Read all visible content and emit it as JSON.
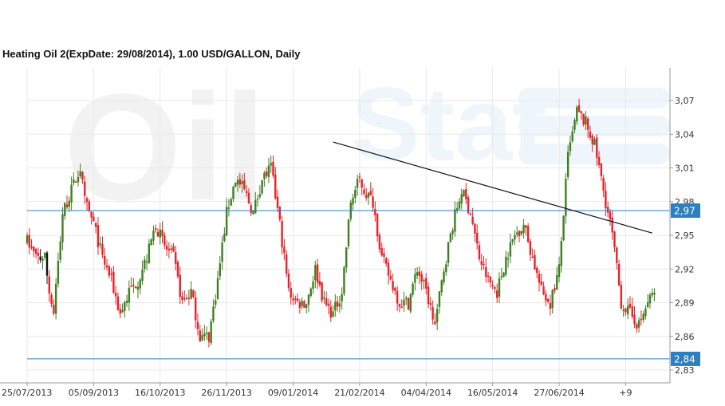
{
  "chart_data": {
    "type": "candlestick",
    "title": "Heating Oil 2(ExpDate: 29/08/2014), 1.00 USD/GALLON, Daily",
    "watermark": [
      "Oil",
      "Stat"
    ],
    "ylim": [
      2.82,
      3.09
    ],
    "y_ticks": [
      "2,83",
      "2,86",
      "2,89",
      "2,92",
      "2,95",
      "2,98",
      "3,01",
      "3,04",
      "3,07"
    ],
    "y_tick_values": [
      2.83,
      2.86,
      2.89,
      2.92,
      2.95,
      2.98,
      3.01,
      3.04,
      3.07
    ],
    "x_ticks": [
      "25/07/2013",
      "05/09/2013",
      "16/10/2013",
      "26/11/2013",
      "09/01/2014",
      "21/02/2014",
      "04/04/2014",
      "16/05/2014",
      "27/06/2014",
      "+9"
    ],
    "x_tick_index": [
      0,
      30,
      60,
      90,
      120,
      150,
      180,
      210,
      240,
      270
    ],
    "index_range": [
      0,
      290
    ],
    "levels": [
      {
        "label": "2,97",
        "value": 2.972
      },
      {
        "label": "2,84",
        "value": 2.84
      }
    ],
    "trendline": {
      "from": {
        "index": 138,
        "value": 3.033
      },
      "to": {
        "index": 282,
        "value": 2.952
      }
    },
    "colors": {
      "up": "#3f7f1f",
      "down": "#e8212a",
      "neutral": "#111111",
      "level": "#2e7fbf",
      "trend": "#111111",
      "grid": "#e8e8e8"
    },
    "anchors": [
      [
        0,
        2.945
      ],
      [
        4,
        2.93
      ],
      [
        8,
        2.93
      ],
      [
        10,
        2.9
      ],
      [
        12,
        2.88
      ],
      [
        16,
        2.97
      ],
      [
        20,
        2.99
      ],
      [
        24,
        3.01
      ],
      [
        26,
        2.98
      ],
      [
        30,
        2.96
      ],
      [
        34,
        2.93
      ],
      [
        38,
        2.91
      ],
      [
        42,
        2.88
      ],
      [
        46,
        2.9
      ],
      [
        50,
        2.91
      ],
      [
        54,
        2.93
      ],
      [
        58,
        2.96
      ],
      [
        62,
        2.94
      ],
      [
        66,
        2.93
      ],
      [
        70,
        2.89
      ],
      [
        74,
        2.9
      ],
      [
        78,
        2.86
      ],
      [
        82,
        2.86
      ],
      [
        86,
        2.91
      ],
      [
        90,
        2.97
      ],
      [
        94,
        3.0
      ],
      [
        98,
        2.99
      ],
      [
        102,
        2.97
      ],
      [
        106,
        3.0
      ],
      [
        110,
        3.01
      ],
      [
        114,
        2.96
      ],
      [
        118,
        2.9
      ],
      [
        122,
        2.89
      ],
      [
        126,
        2.89
      ],
      [
        130,
        2.92
      ],
      [
        134,
        2.89
      ],
      [
        138,
        2.88
      ],
      [
        142,
        2.9
      ],
      [
        146,
        2.98
      ],
      [
        150,
        3.0
      ],
      [
        152,
        2.99
      ],
      [
        156,
        2.98
      ],
      [
        160,
        2.93
      ],
      [
        164,
        2.91
      ],
      [
        168,
        2.89
      ],
      [
        172,
        2.89
      ],
      [
        176,
        2.92
      ],
      [
        180,
        2.9
      ],
      [
        184,
        2.87
      ],
      [
        188,
        2.92
      ],
      [
        192,
        2.96
      ],
      [
        196,
        2.99
      ],
      [
        200,
        2.97
      ],
      [
        204,
        2.93
      ],
      [
        208,
        2.91
      ],
      [
        212,
        2.9
      ],
      [
        216,
        2.93
      ],
      [
        220,
        2.95
      ],
      [
        224,
        2.96
      ],
      [
        228,
        2.93
      ],
      [
        232,
        2.9
      ],
      [
        236,
        2.89
      ],
      [
        240,
        2.92
      ],
      [
        244,
        3.02
      ],
      [
        248,
        3.06
      ],
      [
        252,
        3.05
      ],
      [
        256,
        3.03
      ],
      [
        260,
        2.99
      ],
      [
        264,
        2.95
      ],
      [
        268,
        2.89
      ],
      [
        272,
        2.88
      ],
      [
        276,
        2.87
      ],
      [
        280,
        2.89
      ],
      [
        283,
        2.9
      ]
    ]
  }
}
